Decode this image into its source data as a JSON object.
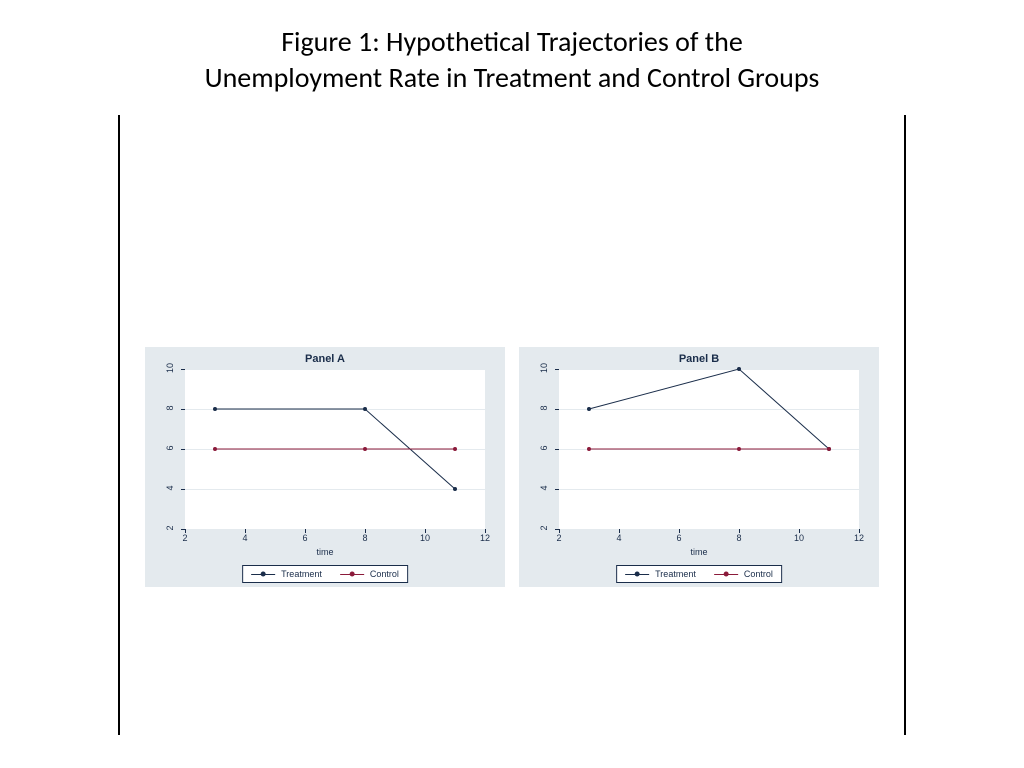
{
  "title_line1": "Figure 1: Hypothetical Trajectories of the",
  "title_line2": "Unemployment Rate in Treatment and Control Groups",
  "title_fontsize": 28,
  "title_color": "#000000",
  "panels": [
    {
      "title": "Panel A",
      "type": "line",
      "background_color": "#e4eaee",
      "plot_background": "#ffffff",
      "title_color": "#1a2d4a",
      "title_fontsize": 11,
      "xlim": [
        2,
        12
      ],
      "ylim": [
        2,
        10
      ],
      "x_ticks": [
        2,
        4,
        6,
        8,
        10,
        12
      ],
      "y_ticks": [
        2,
        4,
        6,
        8,
        10
      ],
      "x_axis_title": "time",
      "axis_color": "#1a2d4a",
      "tick_fontsize": 9,
      "grid_color": "#e4eaee",
      "series": [
        {
          "name": "Treatment",
          "color": "#1a2d4a",
          "marker_color": "#1a2d4a",
          "marker_size": 4,
          "line_width": 1,
          "x": [
            3,
            8,
            11
          ],
          "y": [
            8,
            8,
            4
          ]
        },
        {
          "name": "Control",
          "color": "#8b1a3a",
          "marker_color": "#8b1a3a",
          "marker_size": 4,
          "line_width": 1,
          "x": [
            3,
            8,
            11
          ],
          "y": [
            6,
            6,
            6
          ]
        }
      ],
      "legend": {
        "position": "bottom-center",
        "border_color": "#1a2d4a",
        "background": "#ffffff",
        "fontsize": 9
      }
    },
    {
      "title": "Panel B",
      "type": "line",
      "background_color": "#e4eaee",
      "plot_background": "#ffffff",
      "title_color": "#1a2d4a",
      "title_fontsize": 11,
      "xlim": [
        2,
        12
      ],
      "ylim": [
        2,
        10
      ],
      "x_ticks": [
        2,
        4,
        6,
        8,
        10,
        12
      ],
      "y_ticks": [
        2,
        4,
        6,
        8,
        10
      ],
      "x_axis_title": "time",
      "axis_color": "#1a2d4a",
      "tick_fontsize": 9,
      "grid_color": "#e4eaee",
      "series": [
        {
          "name": "Treatment",
          "color": "#1a2d4a",
          "marker_color": "#1a2d4a",
          "marker_size": 4,
          "line_width": 1,
          "x": [
            3,
            8,
            11
          ],
          "y": [
            8,
            10,
            6
          ]
        },
        {
          "name": "Control",
          "color": "#8b1a3a",
          "marker_color": "#8b1a3a",
          "marker_size": 4,
          "line_width": 1,
          "x": [
            3,
            8,
            11
          ],
          "y": [
            6,
            6,
            6
          ]
        }
      ],
      "legend": {
        "position": "bottom-center",
        "border_color": "#1a2d4a",
        "background": "#ffffff",
        "fontsize": 9
      }
    }
  ]
}
